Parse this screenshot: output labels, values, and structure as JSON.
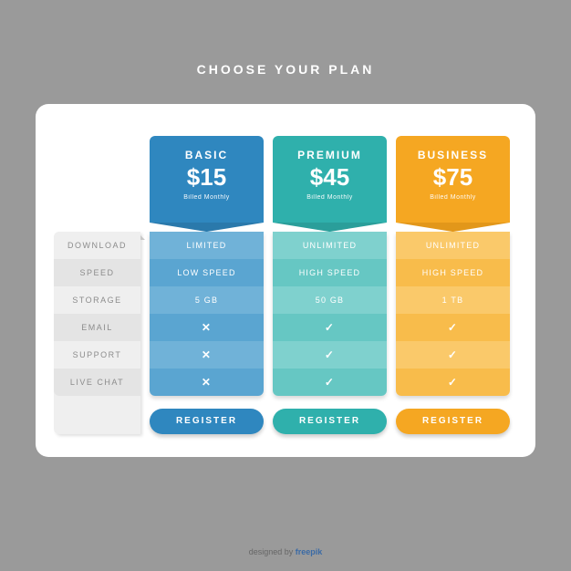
{
  "title": "CHOOSE YOUR PLAN",
  "features": [
    "DOWNLOAD",
    "SPEED",
    "STORAGE",
    "EMAIL",
    "SUPPORT",
    "LIVE CHAT"
  ],
  "plans": [
    {
      "name": "BASIC",
      "price": "$15",
      "billed": "Billed Monthly",
      "head_color": "#2f87bf",
      "chevron_color": "#2a79ab",
      "stripe_a": "#70b2d8",
      "stripe_b": "#5aa5d1",
      "btn_color": "#2f87bf",
      "btn_label": "REGISTER",
      "cells": [
        {
          "text": "LIMITED"
        },
        {
          "text": "LOW SPEED"
        },
        {
          "text": "5 GB"
        },
        {
          "icon": "x"
        },
        {
          "icon": "x"
        },
        {
          "icon": "x"
        }
      ]
    },
    {
      "name": "PREMIUM",
      "price": "$45",
      "billed": "Billed Monthly",
      "head_color": "#2fb0ac",
      "chevron_color": "#2a9e9a",
      "stripe_a": "#7fd1ce",
      "stripe_b": "#66c7c3",
      "btn_color": "#2fb0ac",
      "btn_label": "REGISTER",
      "cells": [
        {
          "text": "UNLIMITED"
        },
        {
          "text": "HIGH SPEED"
        },
        {
          "text": "50 GB"
        },
        {
          "icon": "check"
        },
        {
          "icon": "check"
        },
        {
          "icon": "check"
        }
      ]
    },
    {
      "name": "BUSINESS",
      "price": "$75",
      "billed": "Billed Monthly",
      "head_color": "#f5a722",
      "chevron_color": "#e2971a",
      "stripe_a": "#fac96a",
      "stripe_b": "#f8bc4b",
      "btn_color": "#f5a722",
      "btn_label": "REGISTER",
      "cells": [
        {
          "text": "UNLIMITED"
        },
        {
          "text": "HIGH SPEED"
        },
        {
          "text": "1 TB"
        },
        {
          "icon": "check"
        },
        {
          "icon": "check"
        },
        {
          "icon": "check"
        }
      ]
    }
  ],
  "attribution_prefix": "designed by ",
  "attribution_brand": "freepik"
}
